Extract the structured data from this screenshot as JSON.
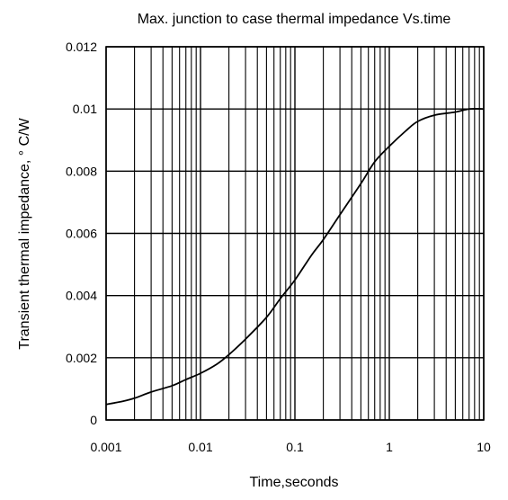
{
  "chart_data": {
    "type": "line",
    "title": "Max. junction to case thermal impedance Vs.time",
    "xlabel": "Time,seconds",
    "ylabel": "Transient thermal impedance, ° C/W",
    "x_scale": "log",
    "xlim": [
      0.001,
      10
    ],
    "ylim": [
      0,
      0.012
    ],
    "grid": true,
    "legend": "none",
    "x_ticks": [
      "0.001",
      "0.01",
      "0.1",
      "1",
      "10"
    ],
    "y_ticks": [
      "0",
      "0.002",
      "0.004",
      "0.006",
      "0.008",
      "0.01",
      "0.012"
    ],
    "series": [
      {
        "x": [
          0.001,
          0.0015,
          0.002,
          0.003,
          0.005,
          0.007,
          0.01,
          0.015,
          0.02,
          0.03,
          0.05,
          0.07,
          0.1,
          0.15,
          0.2,
          0.3,
          0.5,
          0.7,
          1,
          1.5,
          2,
          3,
          5,
          7,
          10
        ],
        "values": [
          0.0005,
          0.0006,
          0.0007,
          0.0009,
          0.0011,
          0.0013,
          0.0015,
          0.0018,
          0.0021,
          0.0026,
          0.0033,
          0.0039,
          0.0045,
          0.0053,
          0.0058,
          0.0066,
          0.0076,
          0.0083,
          0.0088,
          0.0093,
          0.0096,
          0.0098,
          0.0099,
          0.01,
          0.01
        ]
      }
    ],
    "colors": {
      "line": "#000000",
      "grid": "#000000",
      "background": "#ffffff"
    }
  }
}
